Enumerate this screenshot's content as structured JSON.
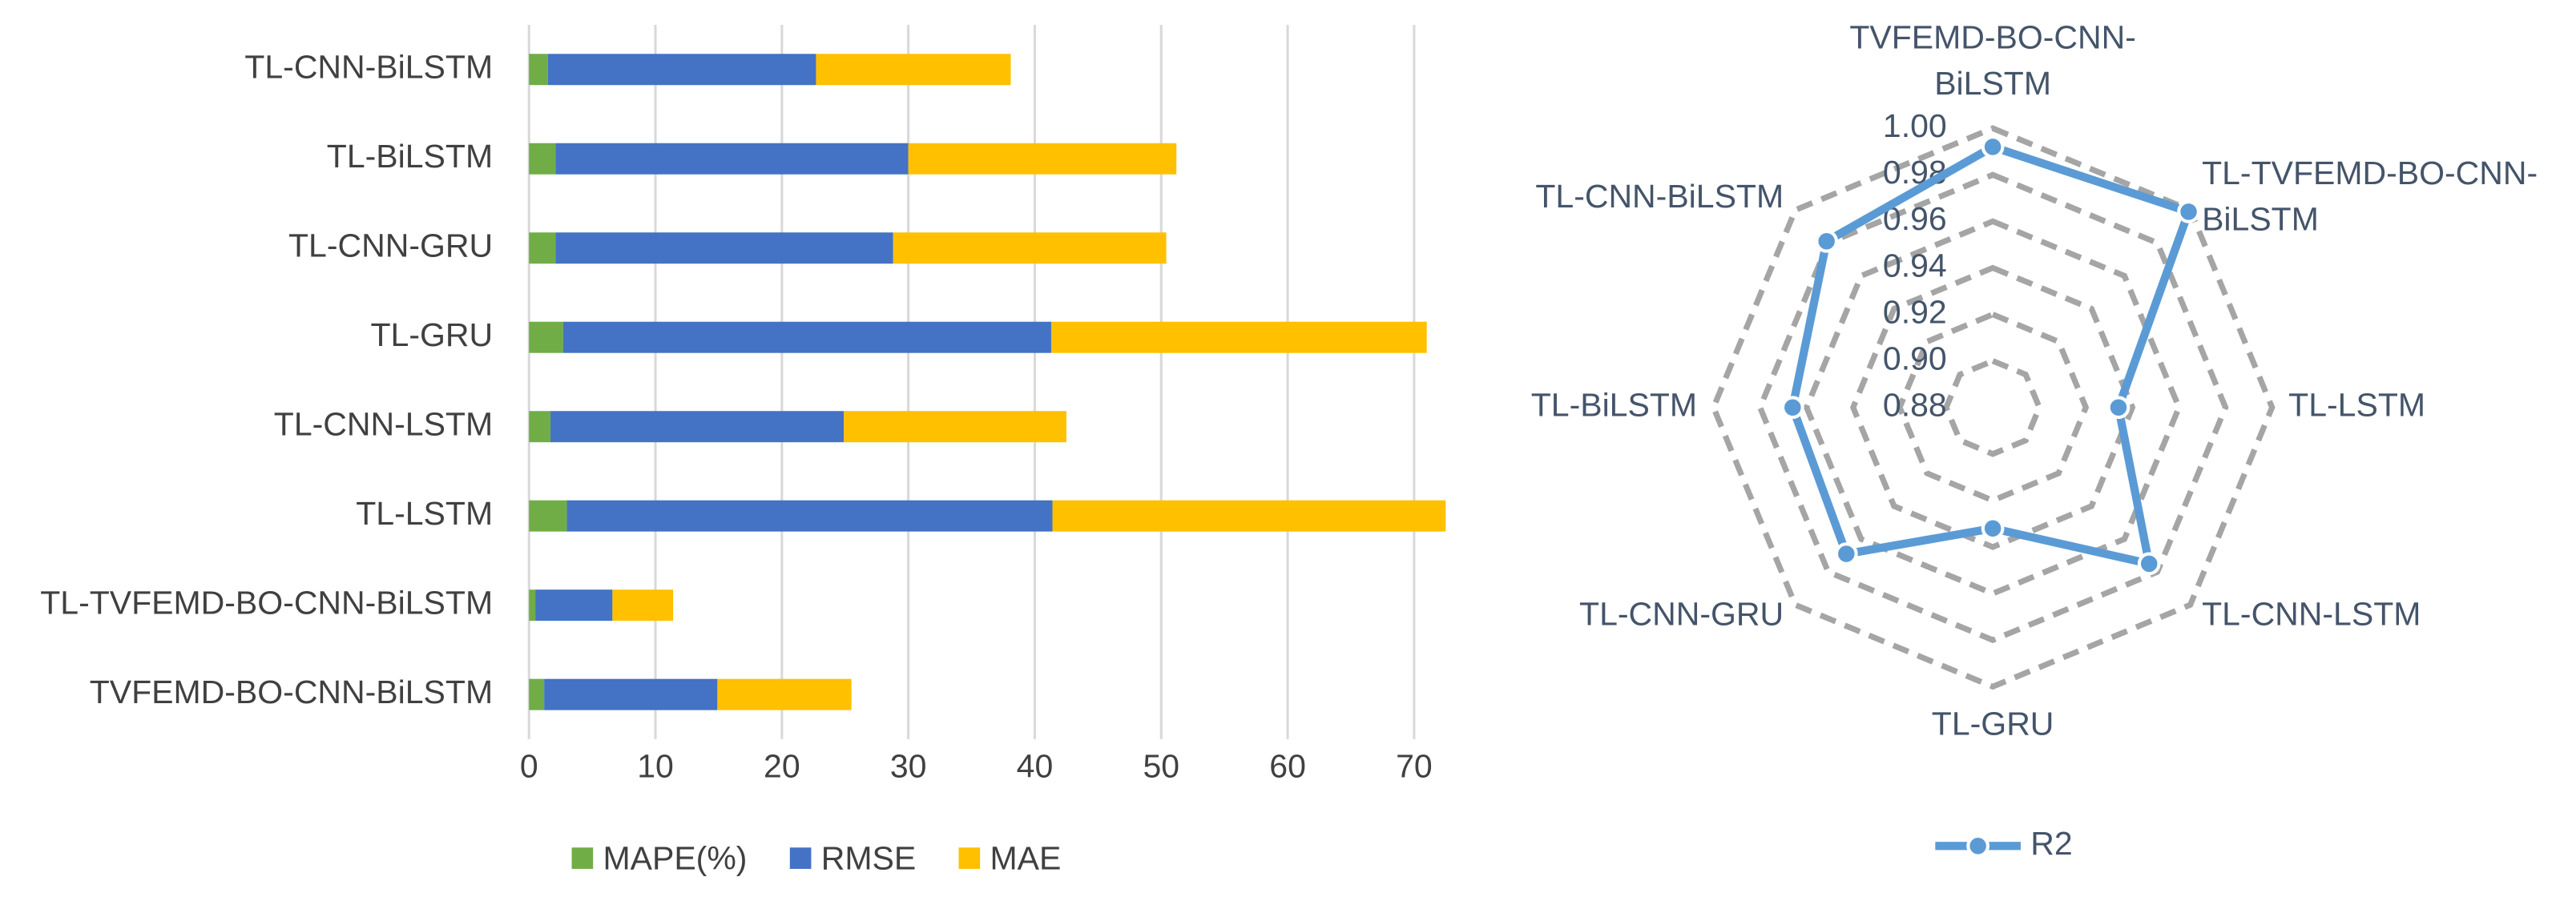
{
  "chart_data": [
    {
      "type": "stacked-bar",
      "categories": [
        "TL-CNN-BiLSTM",
        "TL-BiLSTM",
        "TL-CNN-GRU",
        "TL-GRU",
        "TL-CNN-LSTM",
        "TL-LSTM",
        "TL-TVFEMD-BO-CNN-BiLSTM",
        "TVFEMD-BO-CNN-BiLSTM"
      ],
      "series": [
        {
          "name": "MAPE(%)",
          "color": "#70ad47",
          "values": [
            1.5,
            2.1,
            2.1,
            2.7,
            1.7,
            3.0,
            0.5,
            1.2
          ]
        },
        {
          "name": "RMSE",
          "color": "#4472c4",
          "values": [
            21.2,
            27.9,
            26.7,
            38.6,
            23.2,
            38.4,
            6.1,
            13.7
          ]
        },
        {
          "name": "MAE",
          "color": "#ffc000",
          "values": [
            15.4,
            21.2,
            21.6,
            29.7,
            17.6,
            31.1,
            4.8,
            10.6
          ]
        }
      ],
      "xlim": [
        0,
        72.5
      ],
      "xticks": [
        0,
        10,
        20,
        30,
        40,
        50,
        60,
        70
      ],
      "grid": true,
      "legend": "bottom"
    },
    {
      "type": "radar",
      "categories": [
        "TVFEMD-BO-CNN-BiLSTM",
        "TL-TVFEMD-BO-CNN-BiLSTM",
        "TL-LSTM",
        "TL-CNN-LSTM",
        "TL-GRU",
        "TL-CNN-GRU",
        "TL-BiLSTM",
        "TL-CNN-BiLSTM"
      ],
      "series": [
        {
          "name": "R2",
          "color": "#5b9bd5",
          "values": [
            0.992,
            0.999,
            0.934,
            0.975,
            0.932,
            0.969,
            0.966,
            0.981
          ]
        }
      ],
      "rlim": [
        0.88,
        1.0
      ],
      "rticks": [
        {
          "value": 0.88,
          "label": "0.88"
        },
        {
          "value": 0.9,
          "label": "0.90"
        },
        {
          "value": 0.92,
          "label": "0.92"
        },
        {
          "value": 0.94,
          "label": "0.94"
        },
        {
          "value": 0.96,
          "label": "0.96"
        },
        {
          "value": 0.98,
          "label": "0.98"
        },
        {
          "value": 1.0,
          "label": "1.00"
        }
      ],
      "grid": true,
      "legend": "bottom"
    }
  ]
}
